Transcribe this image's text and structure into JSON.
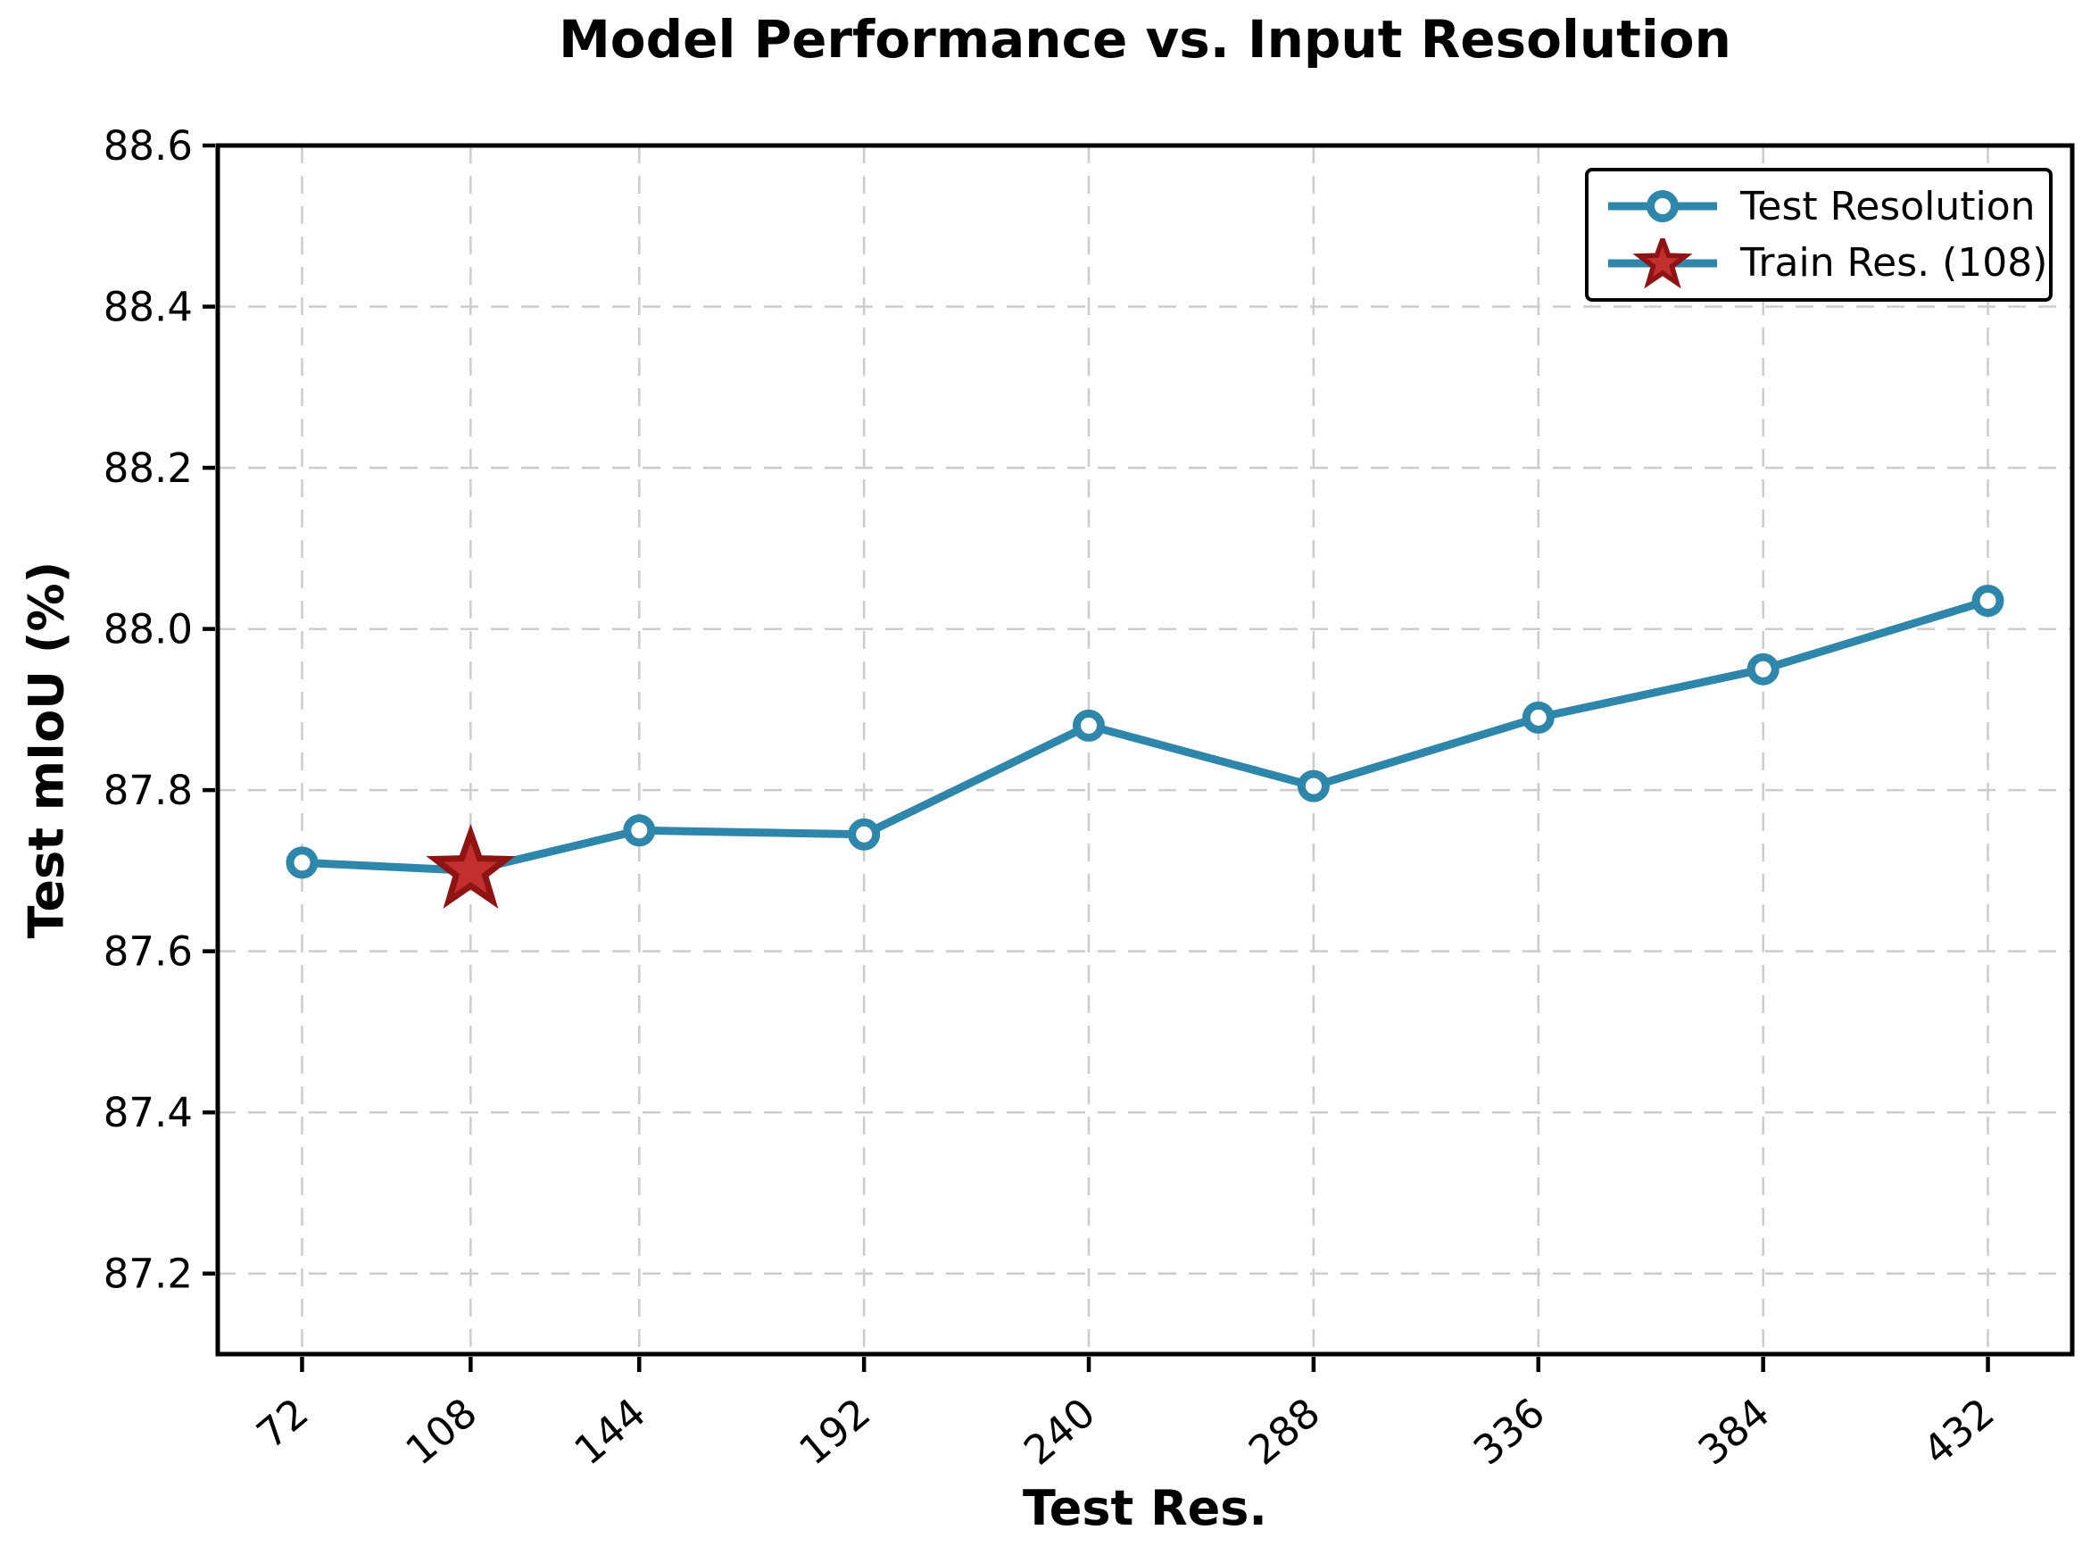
{
  "chart_data": {
    "type": "line",
    "title": "Model Performance vs. Input Resolution",
    "xlabel": "Test Res.",
    "ylabel": "Test mIoU (%)",
    "x": [
      72,
      108,
      144,
      192,
      240,
      288,
      336,
      384,
      432
    ],
    "series": [
      {
        "name": "Test Resolution",
        "marker": "circle",
        "color": "#2E86AB",
        "marker_fill": "#FFFFFF",
        "values": [
          87.71,
          87.7,
          87.75,
          87.745,
          87.88,
          87.805,
          87.89,
          87.95,
          88.035
        ]
      },
      {
        "name": "Train Res. (108)",
        "marker": "star",
        "color": "#C32E2E",
        "edge_color": "#8E1313",
        "x": [
          108
        ],
        "values": [
          87.7
        ]
      }
    ],
    "xlim": [
      54,
      450
    ],
    "ylim": [
      87.1,
      88.6
    ],
    "xticks": [
      72,
      108,
      144,
      192,
      240,
      288,
      336,
      384,
      432
    ],
    "xtick_labels": [
      "72",
      "108",
      "144",
      "192",
      "240",
      "288",
      "336",
      "384",
      "432"
    ],
    "yticks": [
      87.2,
      87.4,
      87.6,
      87.8,
      88.0,
      88.2,
      88.4,
      88.6
    ],
    "ytick_labels": [
      "87.2",
      "87.4",
      "87.6",
      "87.8",
      "88.0",
      "88.2",
      "88.4",
      "88.6"
    ],
    "grid": true,
    "grid_color": "#CCCCCC",
    "axis_color": "#000000",
    "legend_position": "upper right"
  },
  "legend": {
    "items": [
      {
        "label": "Test Resolution",
        "marker": "circle"
      },
      {
        "label": "Train Res. (108)",
        "marker": "star"
      }
    ]
  }
}
